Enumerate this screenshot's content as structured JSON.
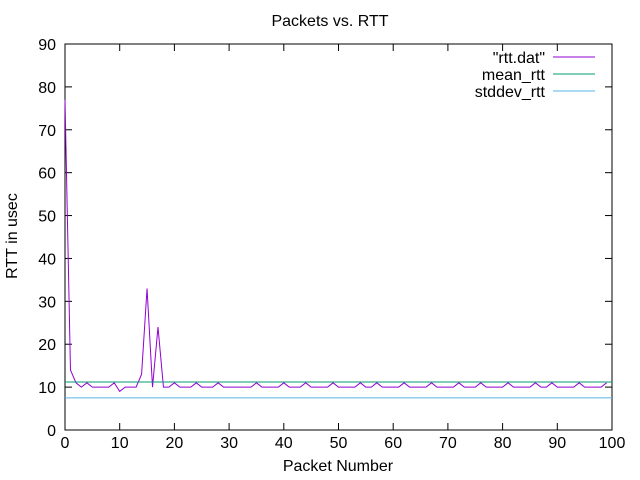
{
  "chart_data": {
    "type": "line",
    "title": "Packets vs. RTT",
    "xlabel": "Packet Number",
    "ylabel": "RTT in usec",
    "xlim": [
      0,
      100
    ],
    "ylim": [
      0,
      90
    ],
    "x_ticks": [
      0,
      10,
      20,
      30,
      40,
      50,
      60,
      70,
      80,
      90,
      100
    ],
    "y_ticks": [
      0,
      10,
      20,
      30,
      40,
      50,
      60,
      70,
      80,
      90
    ],
    "x_tick_labels": [
      "0",
      "10",
      "20",
      "30",
      "40",
      "50",
      "60",
      "70",
      "80",
      "90",
      "100"
    ],
    "y_tick_labels": [
      "0",
      "10",
      "20",
      "30",
      "40",
      "50",
      "60",
      "70",
      "80",
      "90"
    ],
    "grid": false,
    "legend_position": "top-right",
    "series": [
      {
        "name": "\"rtt.dat\"",
        "color": "#9400d3",
        "x": [
          0,
          1,
          2,
          3,
          4,
          5,
          6,
          7,
          8,
          9,
          10,
          11,
          12,
          13,
          14,
          15,
          16,
          17,
          18,
          19,
          20,
          21,
          22,
          23,
          24,
          25,
          26,
          27,
          28,
          29,
          30,
          31,
          32,
          33,
          34,
          35,
          36,
          37,
          38,
          39,
          40,
          41,
          42,
          43,
          44,
          45,
          46,
          47,
          48,
          49,
          50,
          51,
          52,
          53,
          54,
          55,
          56,
          57,
          58,
          59,
          60,
          61,
          62,
          63,
          64,
          65,
          66,
          67,
          68,
          69,
          70,
          71,
          72,
          73,
          74,
          75,
          76,
          77,
          78,
          79,
          80,
          81,
          82,
          83,
          84,
          85,
          86,
          87,
          88,
          89,
          90,
          91,
          92,
          93,
          94,
          95,
          96,
          97,
          98,
          99
        ],
        "values": [
          77,
          14,
          11,
          10,
          11,
          10,
          10,
          10,
          10,
          11,
          9,
          10,
          10,
          10,
          13,
          33,
          10,
          24,
          10,
          10,
          11,
          10,
          10,
          10,
          11,
          10,
          10,
          10,
          11,
          10,
          10,
          10,
          10,
          10,
          10,
          11,
          10,
          10,
          10,
          10,
          11,
          10,
          10,
          10,
          11,
          10,
          10,
          10,
          10,
          11,
          10,
          10,
          10,
          10,
          11,
          10,
          10,
          11,
          10,
          10,
          10,
          10,
          11,
          10,
          10,
          10,
          10,
          11,
          10,
          10,
          10,
          10,
          11,
          10,
          10,
          10,
          11,
          10,
          10,
          10,
          10,
          11,
          10,
          10,
          10,
          10,
          11,
          10,
          10,
          11,
          10,
          10,
          10,
          10,
          11,
          10,
          10,
          10,
          10,
          11
        ]
      },
      {
        "name": "mean_rtt",
        "color": "#009e73",
        "x": [
          0,
          100
        ],
        "values": [
          11.2,
          11.2
        ]
      },
      {
        "name": "stddev_rtt",
        "color": "#56b4e9",
        "x": [
          0,
          100
        ],
        "values": [
          7.5,
          7.5
        ]
      }
    ]
  }
}
